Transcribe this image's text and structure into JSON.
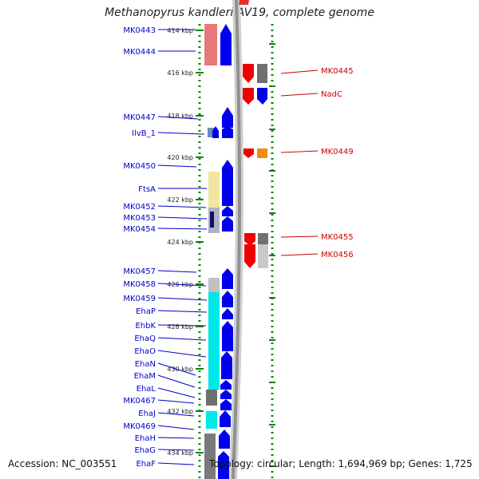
{
  "title": "Methanopyrus kandleri AV19, complete genome",
  "footer": {
    "accession": "Accession: NC_003551",
    "summary": "Topology: circular; Length: 1,694,969 bp; Genes: 1,725"
  },
  "colors": {
    "forward_strand": "#0000ee",
    "reverse_strand": "#ee0000",
    "left_label": "#0000cc",
    "right_label": "#cc0000",
    "axis_dots": "#008800",
    "backbone": "#909090"
  },
  "ticks": [
    "414 kbp",
    "416 kbp",
    "418 kbp",
    "420 kbp",
    "422 kbp",
    "424 kbp",
    "426 kbp",
    "428 kbp",
    "430 kbp",
    "432 kbp",
    "434 kbp"
  ],
  "left_genes": [
    "MK0443",
    "MK0444",
    "MK0447",
    "IlvB_1",
    "MK0450",
    "FtsA",
    "MK0452",
    "MK0453",
    "MK0454",
    "MK0457",
    "MK0458",
    "MK0459",
    "EhaP",
    "EhbK",
    "EhaQ",
    "EhaO",
    "EhaN",
    "EhaM",
    "EhaL",
    "MK0467",
    "EhaJ",
    "MK0469",
    "EhaH",
    "EhaG",
    "EhaF"
  ],
  "right_genes": [
    "MK0445",
    "NadC",
    "MK0449",
    "MK0455",
    "MK0456"
  ]
}
